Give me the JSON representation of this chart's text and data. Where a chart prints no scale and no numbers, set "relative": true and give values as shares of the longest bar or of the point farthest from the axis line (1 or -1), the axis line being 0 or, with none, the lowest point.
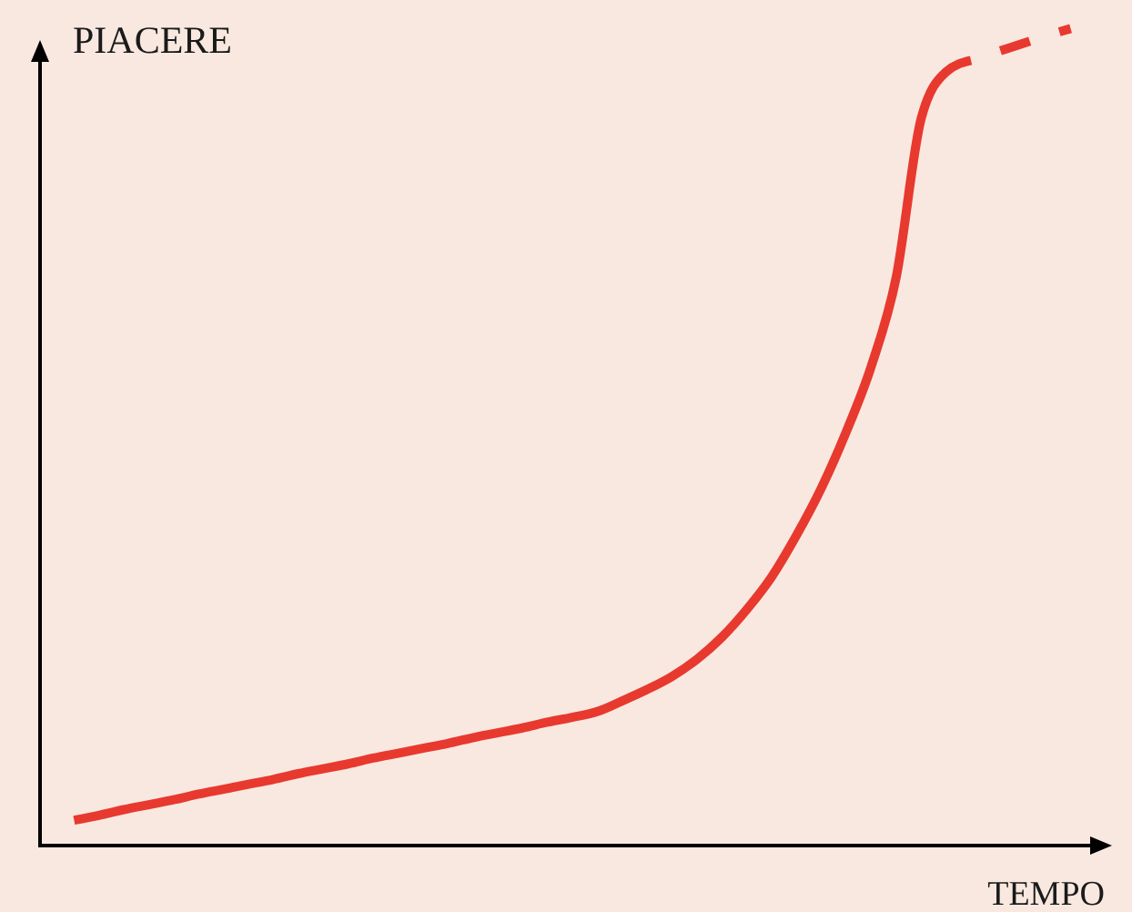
{
  "chart_data": {
    "type": "line",
    "xlabel": "TEMPO",
    "ylabel": "PIACERE",
    "relative": true,
    "categories": [
      null,
      null,
      null,
      null,
      null,
      null,
      null,
      null,
      null,
      null,
      null,
      null,
      null,
      null,
      null,
      null,
      null,
      null,
      null,
      null,
      null,
      null,
      null,
      null,
      null,
      null,
      null,
      null,
      null,
      null,
      null,
      null,
      null,
      null,
      null,
      null,
      null,
      null,
      null,
      null,
      null
    ],
    "series": [
      {
        "color": "#e8392f",
        "line_style": "solid",
        "values": [
          0.031,
          0.037,
          0.044,
          0.05,
          0.056,
          0.063,
          0.069,
          0.075,
          0.081,
          0.088,
          0.094,
          0.1,
          0.107,
          0.113,
          0.119,
          0.125,
          0.132,
          0.138,
          0.144,
          0.151,
          0.157,
          0.164,
          0.177,
          0.191,
          0.207,
          0.228,
          0.255,
          0.289,
          0.329,
          0.38,
          0.438,
          0.507,
          0.587,
          0.696,
          0.89,
          0.947,
          0.961,
          null,
          null,
          null,
          null
        ]
      },
      {
        "color": "#e8392f",
        "line_style": "dashed",
        "values": [
          null,
          null,
          null,
          null,
          null,
          null,
          null,
          null,
          null,
          null,
          null,
          null,
          null,
          null,
          null,
          null,
          null,
          null,
          null,
          null,
          null,
          null,
          null,
          null,
          null,
          null,
          null,
          null,
          null,
          null,
          null,
          null,
          null,
          null,
          null,
          null,
          0.961,
          0.971,
          0.981,
          0.991,
          1
        ]
      }
    ]
  }
}
